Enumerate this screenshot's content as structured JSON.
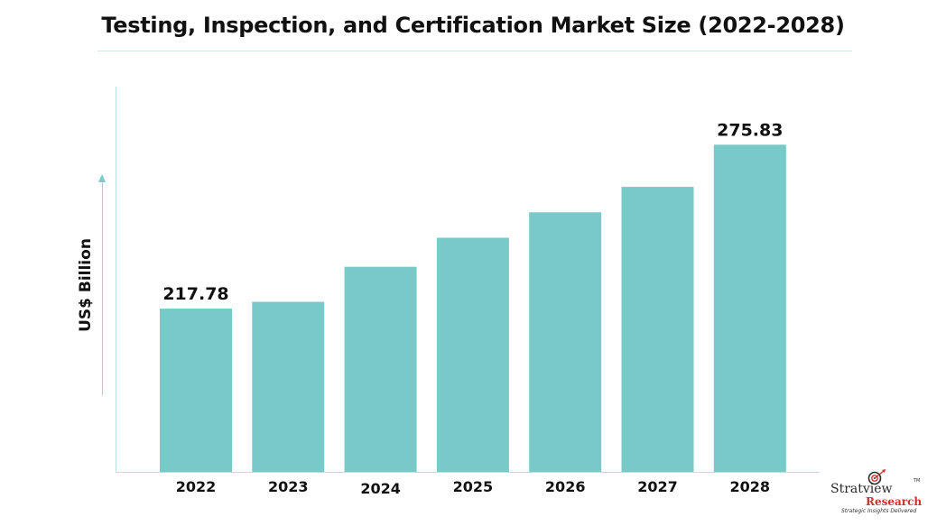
{
  "title": "Testing, Inspection, and Certification Market Size (2022-2028)",
  "chart_data": {
    "type": "bar",
    "title": "Testing, Inspection, and Certification Market Size (2022-2028)",
    "xlabel": "",
    "ylabel": "US$ Billion",
    "categories": [
      "2022",
      "2023",
      "2024",
      "2025",
      "2026",
      "2027",
      "2028"
    ],
    "values": [
      217.78,
      220.2,
      232.6,
      242.9,
      251.9,
      260.9,
      275.83
    ],
    "data_labels": [
      "217.78",
      "",
      "",
      "",
      "",
      "",
      "275.83"
    ],
    "ylim": [
      160,
      290
    ],
    "grid": false,
    "legend": "none",
    "bar_color": "#77cac7"
  },
  "logo": {
    "name": "Stratview",
    "research": "Research",
    "tagline": "Strategic Insights Delivered",
    "tm": "TM"
  }
}
